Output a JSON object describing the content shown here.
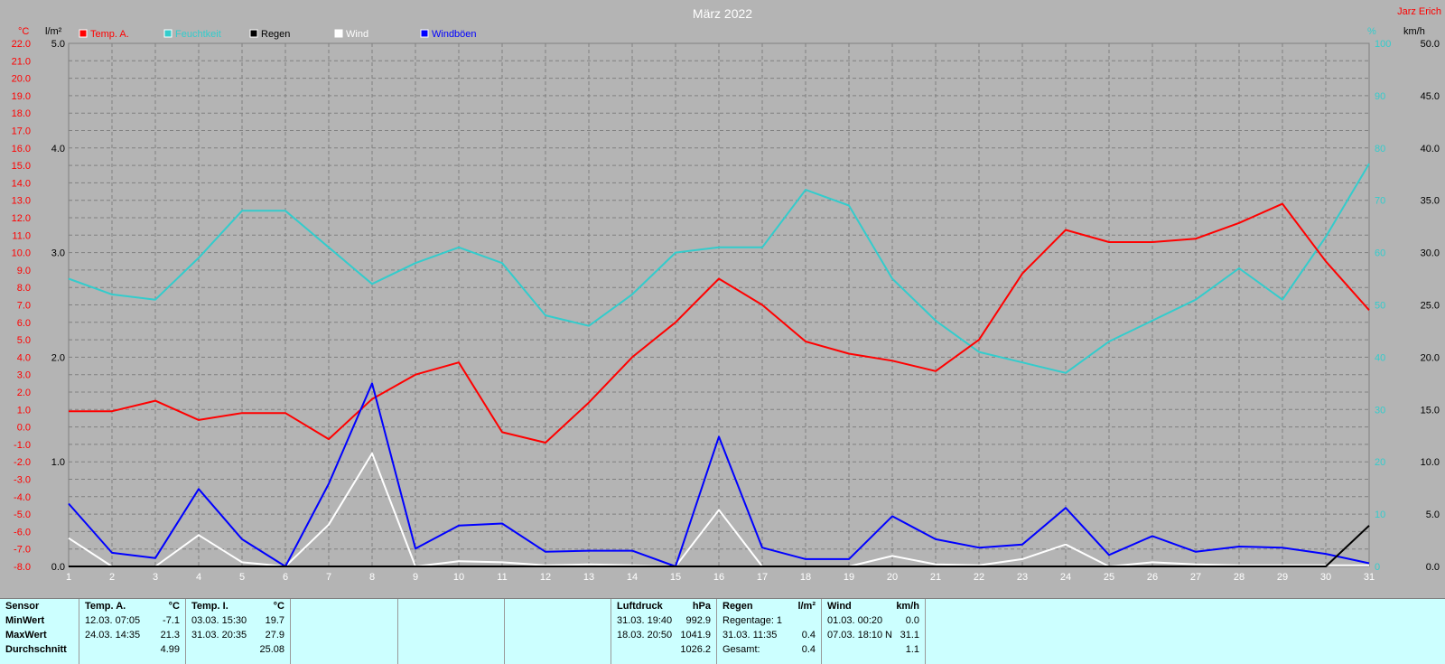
{
  "title": "März 2022",
  "author": "Jarz Erich",
  "colors": {
    "temp": "#ff0000",
    "humidity": "#33cccc",
    "rain": "#000000",
    "wind": "#ffffff",
    "gust": "#0000ff",
    "background": "#b4b4b4",
    "grid": "#808080",
    "stats_bg": "#ccffff"
  },
  "chart_data": {
    "type": "line",
    "title": "März 2022",
    "x": [
      1,
      2,
      3,
      4,
      5,
      6,
      7,
      8,
      9,
      10,
      11,
      12,
      13,
      14,
      15,
      16,
      17,
      18,
      19,
      20,
      21,
      22,
      23,
      24,
      25,
      26,
      27,
      28,
      29,
      30,
      31
    ],
    "grid": true,
    "legend_position": "top-left",
    "axes": {
      "temp": {
        "unit": "°C",
        "range": [
          -8.0,
          22.0
        ],
        "ticks": [
          "22.0",
          "21.0",
          "20.0",
          "19.0",
          "18.0",
          "17.0",
          "16.0",
          "15.0",
          "14.0",
          "13.0",
          "12.0",
          "11.0",
          "10.0",
          "9.0",
          "8.0",
          "7.0",
          "6.0",
          "5.0",
          "4.0",
          "3.0",
          "2.0",
          "1.0",
          "0.0",
          "-1.0",
          "-2.0",
          "-3.0",
          "-4.0",
          "-5.0",
          "-6.0",
          "-7.0",
          "-8.0"
        ]
      },
      "rain": {
        "unit": "l/m²",
        "range": [
          0,
          5.0
        ],
        "ticks": [
          "5.0",
          "4.0",
          "3.0",
          "2.0",
          "1.0",
          "0.0"
        ]
      },
      "humidity": {
        "unit": "%",
        "range": [
          0,
          100
        ],
        "ticks": [
          "100",
          "90",
          "80",
          "70",
          "60",
          "50",
          "40",
          "30",
          "20",
          "10",
          "0"
        ]
      },
      "wind": {
        "unit": "km/h",
        "range": [
          0,
          50.0
        ],
        "ticks": [
          "50.0",
          "45.0",
          "40.0",
          "35.0",
          "30.0",
          "25.0",
          "20.0",
          "15.0",
          "10.0",
          "5.0",
          "0.0"
        ]
      }
    },
    "series": [
      {
        "name": "Temp. A.",
        "axis": "temp",
        "color": "#ff0000",
        "values": [
          0.9,
          0.9,
          1.5,
          0.4,
          0.8,
          0.8,
          -0.7,
          1.6,
          3.0,
          3.7,
          -0.3,
          -0.9,
          1.4,
          4.0,
          6.0,
          8.5,
          7.0,
          4.9,
          4.2,
          3.8,
          3.2,
          5.0,
          8.8,
          11.3,
          10.6,
          10.6,
          10.8,
          11.7,
          12.8,
          9.5,
          6.7
        ]
      },
      {
        "name": "Feuchtkeit",
        "axis": "humidity",
        "color": "#33cccc",
        "values": [
          55,
          52,
          51,
          59,
          68,
          68,
          61,
          54,
          58,
          61,
          58,
          48,
          46,
          52,
          60,
          61,
          61,
          72,
          69,
          55,
          47,
          41,
          39,
          37,
          43,
          47,
          51,
          57,
          51,
          63,
          77
        ]
      },
      {
        "name": "Regen",
        "axis": "rain",
        "color": "#000000",
        "values": [
          0,
          0,
          0,
          0,
          0,
          0,
          0,
          0,
          0,
          0,
          0,
          0,
          0,
          0,
          0,
          0,
          0,
          0,
          0,
          0,
          0,
          0,
          0,
          0,
          0,
          0,
          0,
          0,
          0,
          0,
          0.39
        ]
      },
      {
        "name": "Wind",
        "axis": "wind",
        "color": "#ffffff",
        "values": [
          2.7,
          0,
          0,
          3.0,
          0.4,
          0,
          4.0,
          10.8,
          0,
          0.5,
          0.4,
          0.1,
          0.2,
          0.1,
          0,
          5.4,
          0,
          0,
          0,
          1.0,
          0.2,
          0.1,
          0.7,
          2.1,
          0,
          0.4,
          0.2,
          0.1,
          0.1,
          0.1,
          0.1
        ]
      },
      {
        "name": "Windböen",
        "axis": "wind",
        "color": "#0000ff",
        "values": [
          6.0,
          1.3,
          0.8,
          7.4,
          2.6,
          0,
          7.9,
          17.5,
          1.7,
          3.9,
          4.1,
          1.4,
          1.5,
          1.5,
          0,
          12.4,
          1.8,
          0.7,
          0.7,
          4.8,
          2.6,
          1.8,
          2.1,
          5.6,
          1.1,
          2.9,
          1.4,
          1.9,
          1.8,
          1.2,
          0.3
        ]
      }
    ]
  },
  "stats": {
    "sensor": {
      "label": "Sensor",
      "min": "MinWert",
      "max": "MaxWert",
      "avg": "Durchschnitt"
    },
    "temp_a": {
      "label": "Temp. A.",
      "unit": "°C",
      "min_date": "12.03.  07:05",
      "min_val": "-7.1",
      "max_date": "24.03.  14:35",
      "max_val": "21.3",
      "avg": "4.99"
    },
    "temp_i": {
      "label": "Temp. I.",
      "unit": "°C",
      "min_date": "03.03.  15:30",
      "min_val": "19.7",
      "max_date": "31.03.  20:35",
      "max_val": "27.9",
      "avg": "25.08"
    },
    "pressure": {
      "label": "Luftdruck",
      "unit": "hPa",
      "min_date": "31.03.  19:40",
      "min_val": "992.9",
      "max_date": "18.03.  20:50",
      "max_val": "1041.9",
      "avg": "1026.2"
    },
    "rain": {
      "label": "Regen",
      "unit": "l/m²",
      "days": "Regentage: 1",
      "max_date": "31.03.  11:35",
      "max_val": "0.4",
      "total_label": "Gesamt:",
      "total": "0.4"
    },
    "wind": {
      "label": "Wind",
      "unit": "km/h",
      "min_date": "01.03.  00:20",
      "min_val": "0.0",
      "max_date": "07.03.  18:10",
      "max_dir": "N",
      "max_val": "31.1",
      "avg": "1.1"
    }
  }
}
